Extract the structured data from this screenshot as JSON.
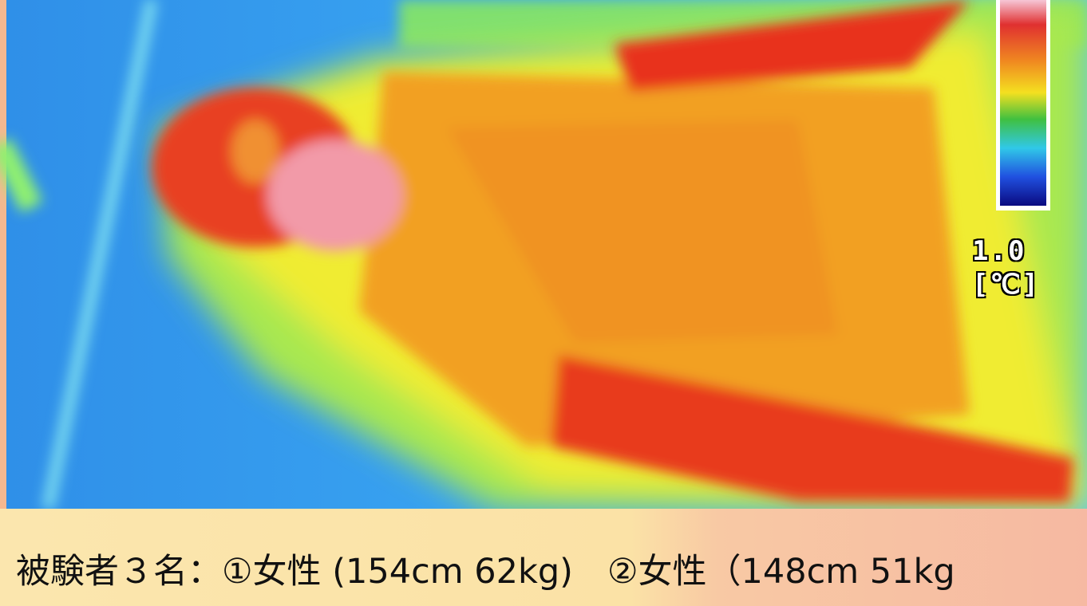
{
  "image": {
    "scale_value": "1.0",
    "scale_unit": "[℃]"
  },
  "caption": "被験者３名：①女性 (154cm 62kg)　②女性（148cm 51kg"
}
